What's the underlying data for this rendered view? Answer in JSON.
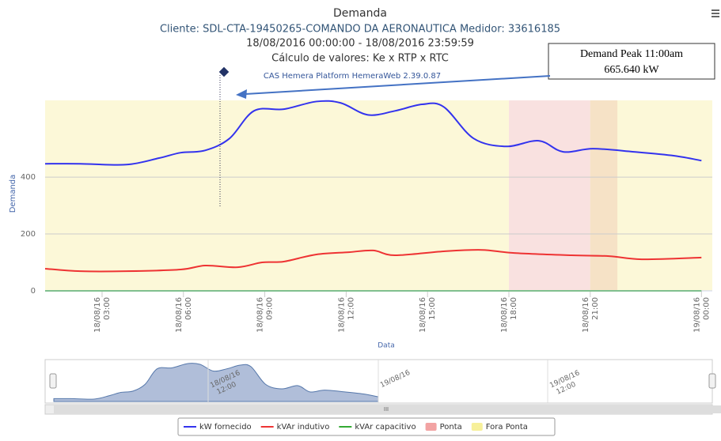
{
  "chart_data": {
    "type": "line",
    "title": "Demanda",
    "subtitle": [
      "Cliente: SDL-CTA-19450265-COMANDO DA AERONAUTICA Medidor: 33616185",
      "18/08/2016 00:00:00 - 18/08/2016 23:59:59",
      "Cálculo de valores: Ke x RTP x RTC"
    ],
    "credit": "CAS Hemera Platform HemeraWeb 2.39.0.87",
    "y_label": "Demanda",
    "x_label": "Data",
    "annotation": [
      "Demand Peak   11:00am",
      "665.640 kW"
    ],
    "xlim": [
      0.9,
      25.5
    ],
    "ylim": [
      0,
      670
    ],
    "yticks": [
      0,
      200,
      400
    ],
    "xticks": [
      {
        "value": 3,
        "label": "18/08/16 03:00"
      },
      {
        "value": 6,
        "label": "18/08/16 06:00"
      },
      {
        "value": 9,
        "label": "18/08/16 09:00"
      },
      {
        "value": 12,
        "label": "18/08/16 12:00"
      },
      {
        "value": 15,
        "label": "18/08/16 15:00"
      },
      {
        "value": 18,
        "label": "18/08/16 18:00"
      },
      {
        "value": 21,
        "label": "18/08/16 21:00"
      },
      {
        "value": 25.1,
        "label": "19/08/16 00:00"
      }
    ],
    "plot_bands": [
      {
        "name": "Fora Ponta",
        "from": 0.9,
        "to": 25.5,
        "color": "#fcf8d8"
      },
      {
        "name": "Ponta",
        "from": 18,
        "to": 21,
        "color": "#f9e1e0"
      },
      {
        "from": 21,
        "to": 22,
        "color": "#f6e2c6"
      }
    ],
    "series": [
      {
        "name": "kW fornecido",
        "color": "#3333ee",
        "x": [
          0.9,
          2.2,
          3.9,
          5.1,
          5.9,
          6.8,
          7.7,
          8.6,
          9.7,
          10.9,
          11.8,
          12.8,
          13.8,
          14.8,
          15.6,
          16.7,
          17.9,
          19.1,
          20,
          21.1,
          22.6,
          24.1,
          25.1
        ],
        "values": [
          447,
          447,
          444,
          467,
          486,
          494,
          536,
          633,
          639,
          666,
          661,
          619,
          633,
          656,
          647,
          536,
          508,
          528,
          489,
          500,
          489,
          475,
          458
        ]
      },
      {
        "name": "kVAr indutivo",
        "color": "#ee3333",
        "x": [
          0.9,
          2.2,
          3.9,
          5.9,
          6.8,
          8,
          8.9,
          9.7,
          10.9,
          12.1,
          13,
          13.8,
          15.6,
          17.0,
          18.2,
          20.3,
          21.7,
          22.9,
          25.1
        ],
        "values": [
          78,
          69,
          69,
          75,
          89,
          83,
          100,
          103,
          128,
          136,
          142,
          125,
          139,
          144,
          133,
          125,
          122,
          111,
          117
        ]
      },
      {
        "name": "kVAr capacitivo",
        "color": "#33aa33",
        "x": [
          0.9,
          25.1
        ],
        "values": [
          0,
          0
        ]
      }
    ],
    "legend_bands": [
      {
        "name": "Ponta",
        "color": "#f2a3a3"
      },
      {
        "name": "Fora Ponta",
        "color": "#f7f09a"
      }
    ],
    "navigator_labels": [
      "18/08/16 12:00",
      "19/08/16",
      "19/08/16 12:00"
    ]
  }
}
